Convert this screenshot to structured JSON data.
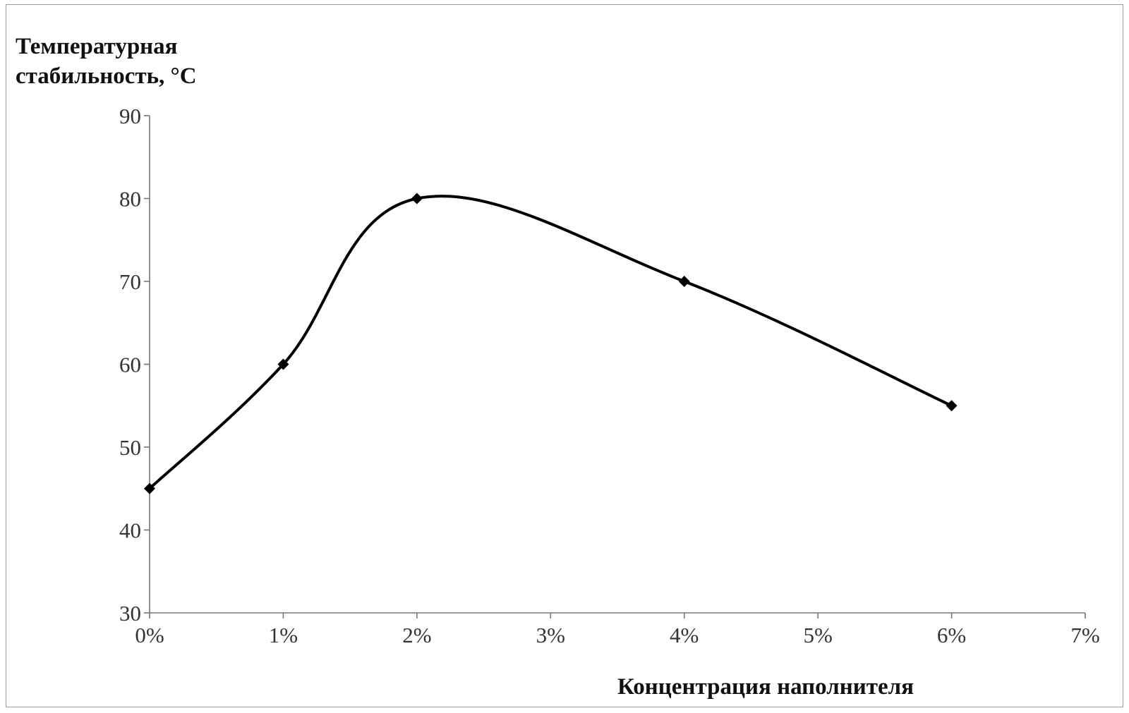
{
  "chart_data": {
    "type": "line",
    "title": "",
    "ylabel_lines": [
      "Температурная",
      "стабильность, °С"
    ],
    "xlabel": "Концентрация наполнителя",
    "x_tick_labels": [
      "0%",
      "1%",
      "2%",
      "3%",
      "4%",
      "5%",
      "6%",
      "7%"
    ],
    "y_tick_labels": [
      "30",
      "40",
      "50",
      "60",
      "70",
      "80",
      "90"
    ],
    "xlim": [
      0,
      7
    ],
    "ylim": [
      30,
      90
    ],
    "grid": false,
    "legend": "none",
    "line_color": "#000000",
    "smooth": true,
    "marker": "diamond",
    "series": [
      {
        "x": [
          0,
          1,
          2,
          4,
          6
        ],
        "y": [
          45,
          60,
          80,
          70,
          55
        ]
      }
    ]
  }
}
